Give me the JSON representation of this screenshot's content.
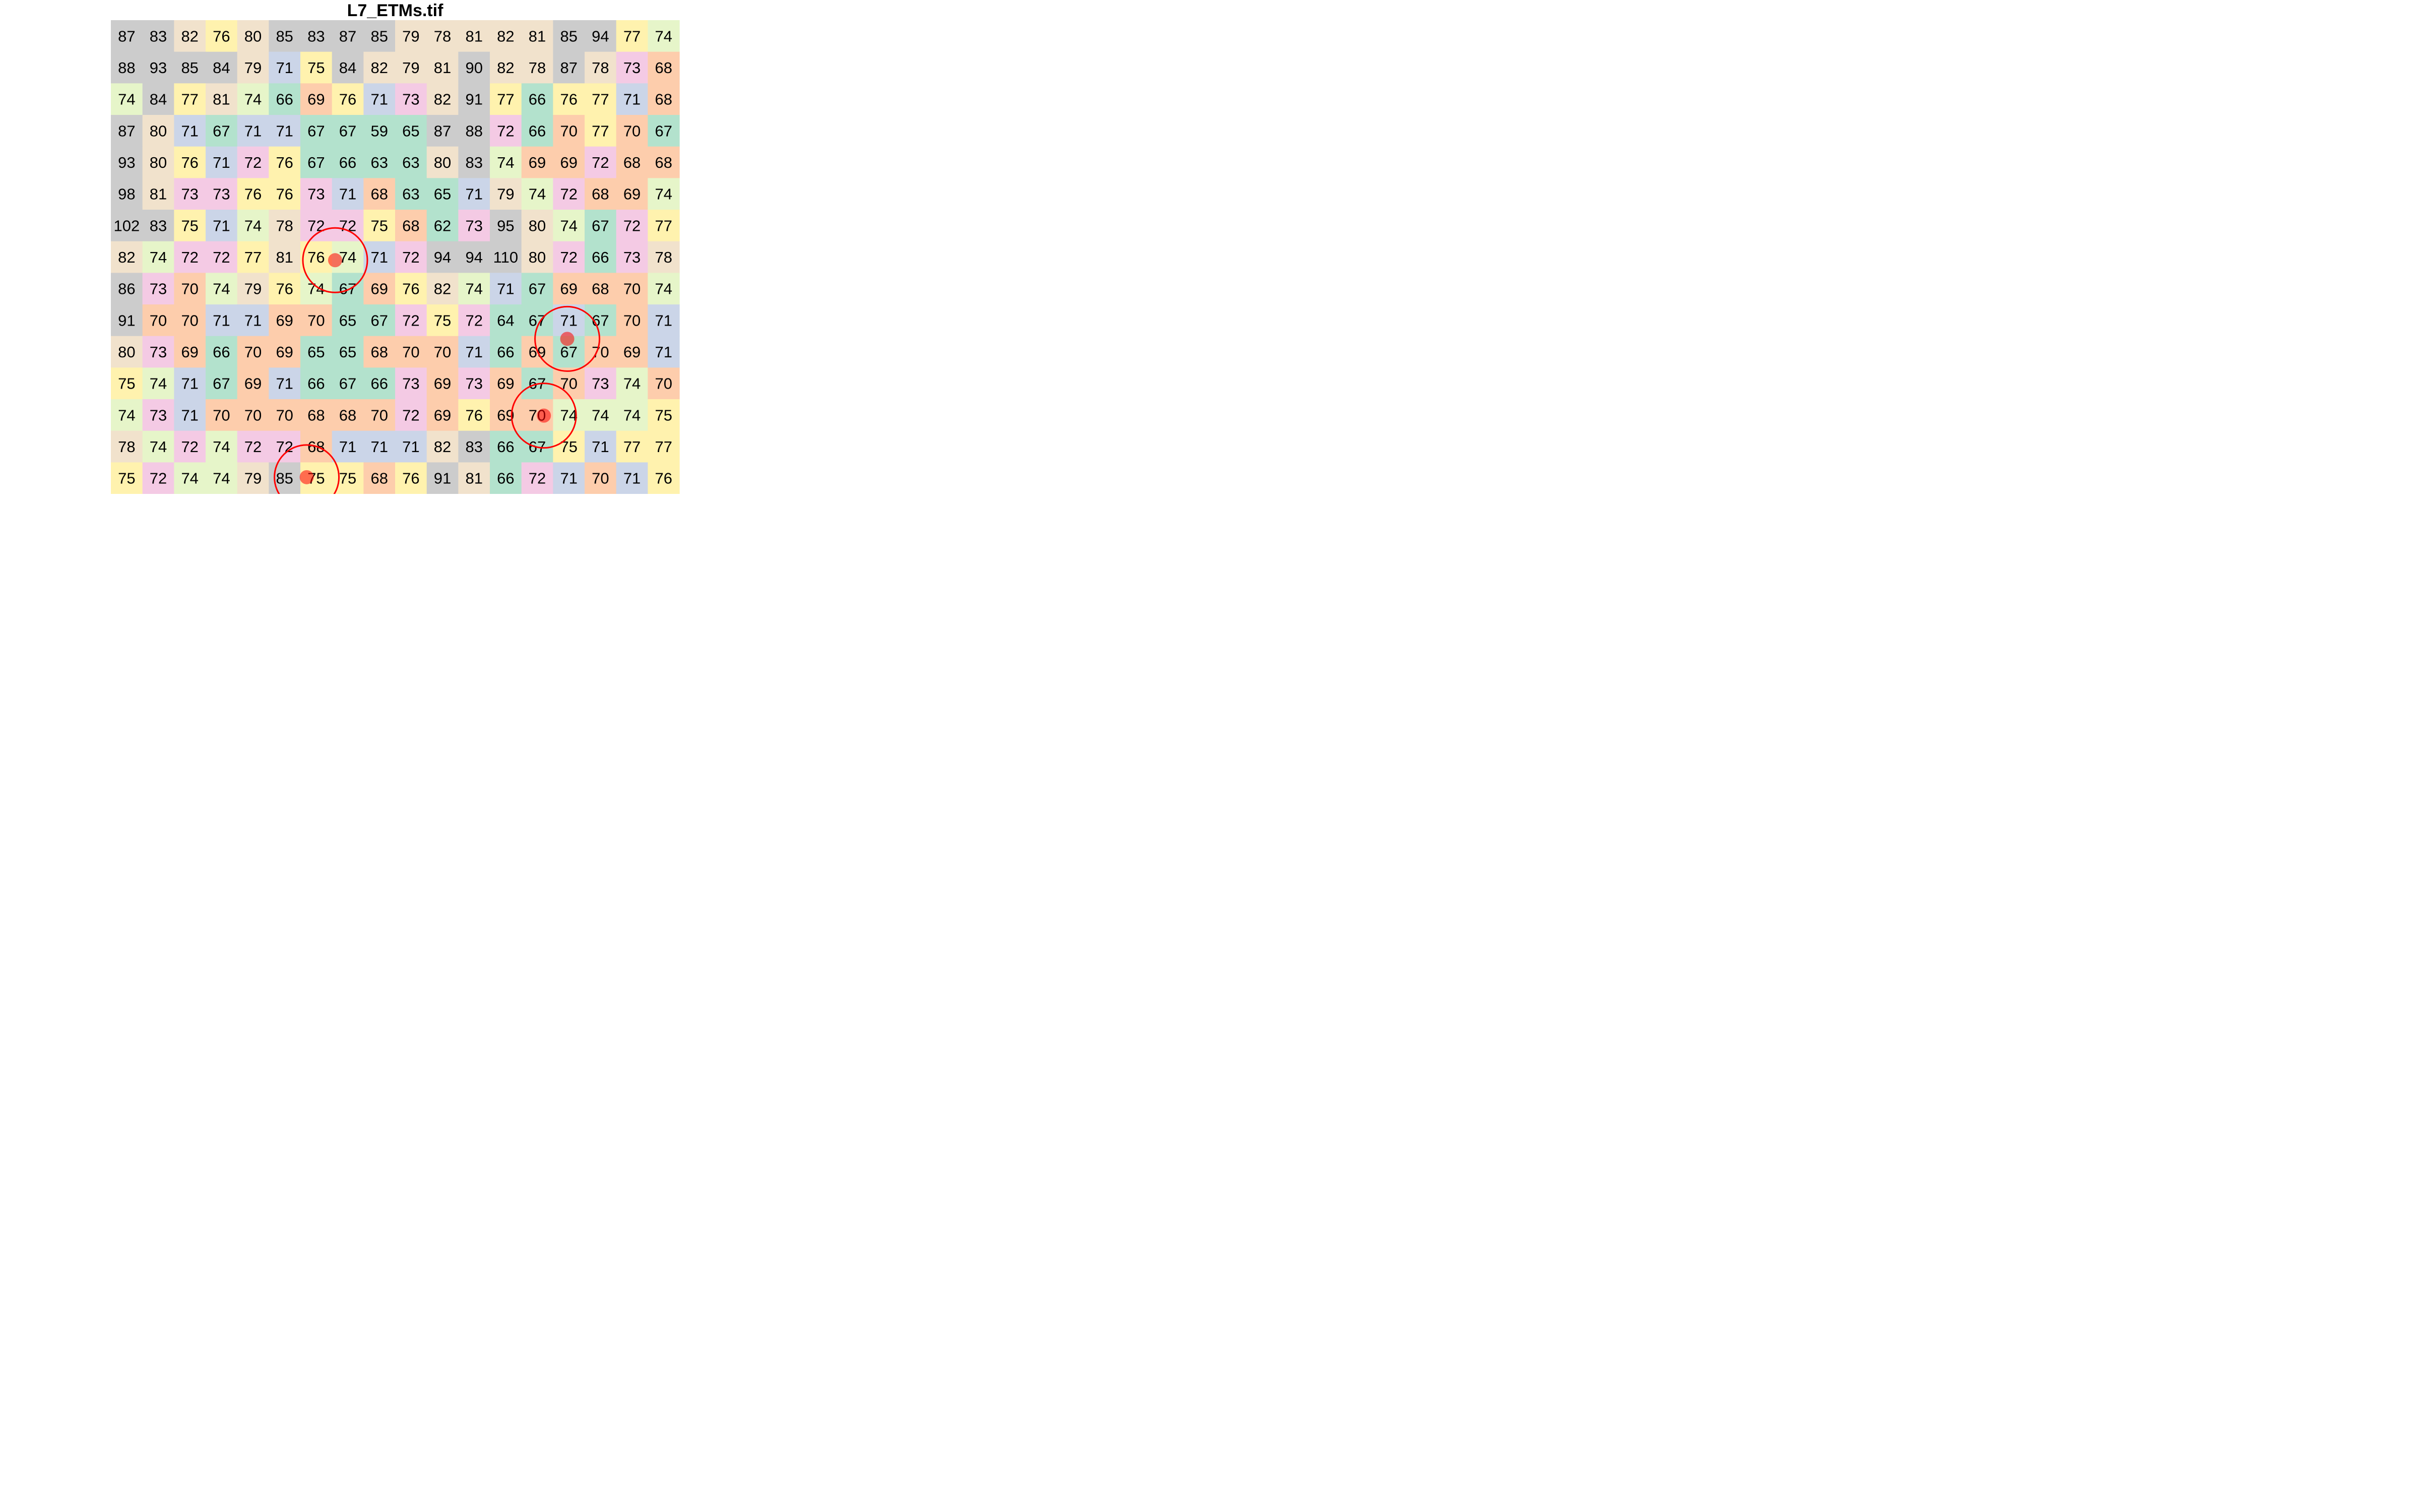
{
  "chart_data": {
    "type": "heatmap",
    "title": "L7_ETMs.tif",
    "xlabel": "",
    "ylabel": "",
    "grid": false,
    "legend": "none",
    "n_rows": 15,
    "n_cols": 18,
    "values": [
      [
        87,
        83,
        82,
        76,
        80,
        85,
        83,
        87,
        85,
        79,
        78,
        81,
        82,
        81,
        85,
        94,
        77,
        74
      ],
      [
        88,
        93,
        85,
        84,
        79,
        71,
        75,
        84,
        82,
        79,
        81,
        90,
        82,
        78,
        87,
        78,
        73,
        68
      ],
      [
        74,
        84,
        77,
        81,
        74,
        66,
        69,
        76,
        71,
        73,
        82,
        91,
        77,
        66,
        76,
        77,
        71,
        68
      ],
      [
        87,
        80,
        71,
        67,
        71,
        71,
        67,
        67,
        59,
        65,
        87,
        88,
        72,
        66,
        70,
        77,
        70,
        67
      ],
      [
        93,
        80,
        76,
        71,
        72,
        76,
        67,
        66,
        63,
        63,
        80,
        83,
        74,
        69,
        69,
        72,
        68,
        68
      ],
      [
        98,
        81,
        73,
        73,
        76,
        76,
        73,
        71,
        68,
        63,
        65,
        71,
        79,
        74,
        72,
        68,
        69,
        74
      ],
      [
        102,
        83,
        75,
        71,
        74,
        78,
        72,
        72,
        75,
        68,
        62,
        73,
        95,
        80,
        74,
        67,
        72,
        77
      ],
      [
        82,
        74,
        72,
        72,
        77,
        81,
        76,
        74,
        71,
        72,
        94,
        94,
        110,
        80,
        72,
        66,
        73,
        78
      ],
      [
        86,
        73,
        70,
        74,
        79,
        76,
        74,
        67,
        69,
        76,
        82,
        74,
        71,
        67,
        69,
        68,
        70,
        74
      ],
      [
        91,
        70,
        70,
        71,
        71,
        69,
        70,
        65,
        67,
        72,
        75,
        72,
        64,
        67,
        71,
        67,
        70,
        71
      ],
      [
        80,
        73,
        69,
        66,
        70,
        69,
        65,
        65,
        68,
        70,
        70,
        71,
        66,
        69,
        67,
        70,
        69,
        71
      ],
      [
        75,
        74,
        71,
        67,
        69,
        71,
        66,
        67,
        66,
        73,
        69,
        73,
        69,
        67,
        70,
        73,
        74,
        70
      ],
      [
        74,
        73,
        71,
        70,
        70,
        70,
        68,
        68,
        70,
        72,
        69,
        76,
        69,
        70,
        74,
        74,
        74,
        75
      ],
      [
        78,
        74,
        72,
        74,
        72,
        72,
        68,
        71,
        71,
        71,
        82,
        83,
        66,
        67,
        75,
        71,
        77,
        77
      ],
      [
        75,
        72,
        74,
        74,
        79,
        85,
        75,
        75,
        68,
        76,
        91,
        81,
        66,
        72,
        71,
        70,
        71,
        76
      ]
    ],
    "cell_colors": [
      [
        "#cccccc",
        "#cccccc",
        "#f1e2cc",
        "#fff2ae",
        "#f1e2cc",
        "#cccccc",
        "#cccccc",
        "#cccccc",
        "#cccccc",
        "#f1e2cc",
        "#f1e2cc",
        "#f1e2cc",
        "#f1e2cc",
        "#f1e2cc",
        "#cccccc",
        "#cccccc",
        "#fff2ae",
        "#e6f5c9"
      ],
      [
        "#cccccc",
        "#cccccc",
        "#cccccc",
        "#cccccc",
        "#f1e2cc",
        "#cbd5e8",
        "#fff2ae",
        "#cccccc",
        "#f1e2cc",
        "#f1e2cc",
        "#f1e2cc",
        "#cccccc",
        "#f1e2cc",
        "#f1e2cc",
        "#cccccc",
        "#f1e2cc",
        "#f4cae4",
        "#fdcdac"
      ],
      [
        "#e6f5c9",
        "#cccccc",
        "#fff2ae",
        "#f1e2cc",
        "#e6f5c9",
        "#b3e2cd",
        "#fdcdac",
        "#fff2ae",
        "#cbd5e8",
        "#f4cae4",
        "#f1e2cc",
        "#cccccc",
        "#fff2ae",
        "#b3e2cd",
        "#fff2ae",
        "#fff2ae",
        "#cbd5e8",
        "#fdcdac"
      ],
      [
        "#cccccc",
        "#f1e2cc",
        "#cbd5e8",
        "#b3e2cd",
        "#cbd5e8",
        "#cbd5e8",
        "#b3e2cd",
        "#b3e2cd",
        "#b3e2cd",
        "#b3e2cd",
        "#cccccc",
        "#cccccc",
        "#f4cae4",
        "#b3e2cd",
        "#fdcdac",
        "#fff2ae",
        "#fdcdac",
        "#b3e2cd"
      ],
      [
        "#cccccc",
        "#f1e2cc",
        "#fff2ae",
        "#cbd5e8",
        "#f4cae4",
        "#fff2ae",
        "#b3e2cd",
        "#b3e2cd",
        "#b3e2cd",
        "#b3e2cd",
        "#f1e2cc",
        "#cccccc",
        "#e6f5c9",
        "#fdcdac",
        "#fdcdac",
        "#f4cae4",
        "#fdcdac",
        "#fdcdac"
      ],
      [
        "#cccccc",
        "#f1e2cc",
        "#f4cae4",
        "#f4cae4",
        "#fff2ae",
        "#fff2ae",
        "#f4cae4",
        "#cbd5e8",
        "#fdcdac",
        "#b3e2cd",
        "#b3e2cd",
        "#cbd5e8",
        "#f1e2cc",
        "#e6f5c9",
        "#f4cae4",
        "#fdcdac",
        "#fdcdac",
        "#e6f5c9"
      ],
      [
        "#cccccc",
        "#cccccc",
        "#fff2ae",
        "#cbd5e8",
        "#e6f5c9",
        "#f1e2cc",
        "#f4cae4",
        "#f4cae4",
        "#fff2ae",
        "#fdcdac",
        "#b3e2cd",
        "#f4cae4",
        "#cccccc",
        "#f1e2cc",
        "#e6f5c9",
        "#b3e2cd",
        "#f4cae4",
        "#fff2ae"
      ],
      [
        "#f1e2cc",
        "#e6f5c9",
        "#f4cae4",
        "#f4cae4",
        "#fff2ae",
        "#f1e2cc",
        "#fff2ae",
        "#e6f5c9",
        "#cbd5e8",
        "#f4cae4",
        "#cccccc",
        "#cccccc",
        "#cccccc",
        "#f1e2cc",
        "#f4cae4",
        "#b3e2cd",
        "#f4cae4",
        "#f1e2cc"
      ],
      [
        "#cccccc",
        "#f4cae4",
        "#fdcdac",
        "#e6f5c9",
        "#f1e2cc",
        "#fff2ae",
        "#e6f5c9",
        "#b3e2cd",
        "#fdcdac",
        "#fff2ae",
        "#f1e2cc",
        "#e6f5c9",
        "#cbd5e8",
        "#b3e2cd",
        "#fdcdac",
        "#fdcdac",
        "#fdcdac",
        "#e6f5c9"
      ],
      [
        "#cccccc",
        "#fdcdac",
        "#fdcdac",
        "#cbd5e8",
        "#cbd5e8",
        "#fdcdac",
        "#fdcdac",
        "#b3e2cd",
        "#b3e2cd",
        "#f4cae4",
        "#fff2ae",
        "#f4cae4",
        "#b3e2cd",
        "#b3e2cd",
        "#cbd5e8",
        "#b3e2cd",
        "#fdcdac",
        "#cbd5e8"
      ],
      [
        "#f1e2cc",
        "#f4cae4",
        "#fdcdac",
        "#b3e2cd",
        "#fdcdac",
        "#fdcdac",
        "#b3e2cd",
        "#b3e2cd",
        "#fdcdac",
        "#fdcdac",
        "#fdcdac",
        "#cbd5e8",
        "#b3e2cd",
        "#fdcdac",
        "#b3e2cd",
        "#fdcdac",
        "#fdcdac",
        "#cbd5e8"
      ],
      [
        "#fff2ae",
        "#e6f5c9",
        "#cbd5e8",
        "#b3e2cd",
        "#fdcdac",
        "#cbd5e8",
        "#b3e2cd",
        "#b3e2cd",
        "#b3e2cd",
        "#f4cae4",
        "#fdcdac",
        "#f4cae4",
        "#fdcdac",
        "#b3e2cd",
        "#fdcdac",
        "#f4cae4",
        "#e6f5c9",
        "#fdcdac"
      ],
      [
        "#e6f5c9",
        "#f4cae4",
        "#cbd5e8",
        "#fdcdac",
        "#fdcdac",
        "#fdcdac",
        "#fdcdac",
        "#fdcdac",
        "#fdcdac",
        "#f4cae4",
        "#fdcdac",
        "#fff2ae",
        "#fdcdac",
        "#fdcdac",
        "#e6f5c9",
        "#e6f5c9",
        "#e6f5c9",
        "#fff2ae"
      ],
      [
        "#f1e2cc",
        "#e6f5c9",
        "#f4cae4",
        "#e6f5c9",
        "#f4cae4",
        "#f4cae4",
        "#fdcdac",
        "#cbd5e8",
        "#cbd5e8",
        "#cbd5e8",
        "#f1e2cc",
        "#cccccc",
        "#b3e2cd",
        "#b3e2cd",
        "#fff2ae",
        "#cbd5e8",
        "#fff2ae",
        "#fff2ae"
      ],
      [
        "#fff2ae",
        "#f4cae4",
        "#e6f5c9",
        "#e6f5c9",
        "#f1e2cc",
        "#cccccc",
        "#fff2ae",
        "#fff2ae",
        "#fdcdac",
        "#fff2ae",
        "#cccccc",
        "#f1e2cc",
        "#b3e2cd",
        "#f4cae4",
        "#cbd5e8",
        "#fdcdac",
        "#cbd5e8",
        "#fff2ae"
      ]
    ],
    "points": [
      {
        "x": 7.1,
        "y": 7.6
      },
      {
        "x": 14.45,
        "y": 10.09
      },
      {
        "x": 13.71,
        "y": 12.52
      },
      {
        "x": 6.2,
        "y": 14.47
      }
    ],
    "point_color": "#ff0000",
    "circle_color": "#ff0000"
  }
}
